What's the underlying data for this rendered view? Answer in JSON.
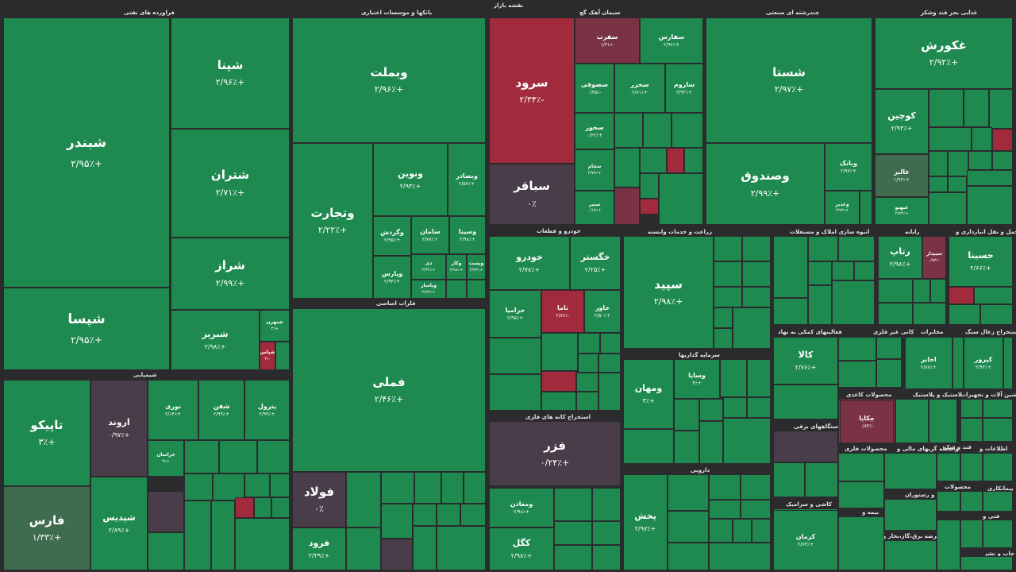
{
  "title": "نقشه بازار",
  "colors": {
    "up": "#1f8a50",
    "down": "#a12a3c",
    "neutral": "#4a3d4a",
    "background": "#2b2b2e"
  },
  "sectors": {
    "petro": "فراورده های نفتی",
    "banks": "بانکها و موسسات اعتباری",
    "cement": "سیمان آهک گچ",
    "multi": "چندرشته ای صنعتی",
    "food": "غذایی بجز قند وشکر",
    "chem": "شیمیایی",
    "metals": "فلزات اساسی",
    "auto": "خودرو و قطعات",
    "agri": "زراعت و خدمات وابسته",
    "realestate": "انبوه سازی املاک و مستغلات",
    "computer": "رایانه",
    "transport": "حمل و نقل انبارداری و",
    "ore": "استخراج کانه های فلزی",
    "investment": "سرمایه گذاریها",
    "financial": "فعالیتهای کمکی به نهاد",
    "nonmetal": "کانی غیر فلزی",
    "telecom": "مخابرات",
    "coal": "استخراج زغال سنگ",
    "pharma": "دارویی",
    "metalprod": "محصولات کاغذی",
    "rubber": "لاستیک و پلاستیک",
    "machinery": "ماشین آلات و تجهیزات",
    "devices": "دستگاههای برقی",
    "metalproducts": "محصولات فلزی",
    "sugar": "قند و شکر",
    "info": "اطلاعات و",
    "brokers": "واسطه گریهای مالی و",
    "insurance": "بیمه و",
    "hotel": "هتل و رستوران",
    "contract": "پیمانکاری",
    "ceramic": "کاشی و سرامیک",
    "utility": "عرضه برق،گاز،بخار و آب",
    "tech": "فنی و",
    "product": "محصولات",
    "misc": "چاپ و نشر"
  },
  "tiles": [
    {
      "name": "شبندر",
      "change": "+۲/۹۵٪"
    },
    {
      "name": "شپنا",
      "change": "+۲/۹۶٪"
    },
    {
      "name": "شتران",
      "change": "+۲/۷۱٪"
    },
    {
      "name": "شراز",
      "change": "+۲/۹۹٪"
    },
    {
      "name": "شپسا",
      "change": "+۲/۹۵٪"
    },
    {
      "name": "شبریز",
      "change": "+۲/۹۸٪"
    },
    {
      "name": "شبهرن",
      "change": "+۳٪"
    },
    {
      "name": "شپاس",
      "change": "-۳٪"
    },
    {
      "name": "وبملت",
      "change": "+۲/۹۶٪"
    },
    {
      "name": "وتجارت",
      "change": "+۲/۲۲٪"
    },
    {
      "name": "ونوین",
      "change": "+۲/۹۳٪"
    },
    {
      "name": "وبصادر",
      "change": "+۲/۵۷٪"
    },
    {
      "name": "وگردش",
      "change": "+۲/۹۵٪"
    },
    {
      "name": "سامان",
      "change": "+۲/۷۸٪"
    },
    {
      "name": "وسینا",
      "change": "+۲/۹۸٪"
    },
    {
      "name": "وپارس",
      "change": "+۲/۹۴٪"
    },
    {
      "name": "دی",
      "change": "+۲/۳۲٪"
    },
    {
      "name": "وکار",
      "change": "+۲/۹۸٪"
    },
    {
      "name": "وپست",
      "change": "+۲/۹۳٪"
    },
    {
      "name": "وپاسار",
      "change": "+۲/۹۴٪"
    },
    {
      "name": "سرود",
      "change": "-۲/۳۴٪"
    },
    {
      "name": "سفرب",
      "change": "-۱/۳۱٪"
    },
    {
      "name": "سفارس",
      "change": "+۲/۹۶٪"
    },
    {
      "name": "سباقر",
      "change": "۰٪"
    },
    {
      "name": "سصوفی",
      "change": "-۰/۳۵٪"
    },
    {
      "name": "سخزر",
      "change": "+۲/۸۱٪"
    },
    {
      "name": "ساروم",
      "change": "+۲/۹۲٪"
    },
    {
      "name": "سخوز",
      "change": "+۰/۶۲٪"
    },
    {
      "name": "سجام",
      "change": "+۲/۷۷٪"
    },
    {
      "name": "ستیر",
      "change": "+۰/۱۷٪"
    },
    {
      "name": "شستا",
      "change": "+۲/۹۷٪"
    },
    {
      "name": "وصندوق",
      "change": "+۲/۹۹٪"
    },
    {
      "name": "وبانک",
      "change": "+۲/۹۷٪"
    },
    {
      "name": "وغدیر",
      "change": "+۲/۹۳٪"
    },
    {
      "name": "غکورش",
      "change": "+۲/۹۲٪"
    },
    {
      "name": "کوچین",
      "change": "+۲/۹۳٪"
    },
    {
      "name": "غالبر",
      "change": "+۱/۹۳٪"
    },
    {
      "name": "غبهنو",
      "change": "+۲/۹۴٪"
    },
    {
      "name": "تاپیکو",
      "change": "+۳٪"
    },
    {
      "name": "فارس",
      "change": "+۱/۳۳٪"
    },
    {
      "name": "اروند",
      "change": "+۰/۹۷٪"
    },
    {
      "name": "شپدیس",
      "change": "+۲/۸۹٪"
    },
    {
      "name": "نوری",
      "change": "+۲/۱۴٪"
    },
    {
      "name": "شفن",
      "change": "+۲/۹۹٪"
    },
    {
      "name": "پترول",
      "change": "+۲/۹۹٪"
    },
    {
      "name": "خراسان",
      "change": "+۳٪"
    },
    {
      "name": "فملی",
      "change": "+۲/۴۶٪"
    },
    {
      "name": "فولاد",
      "change": "۰٪"
    },
    {
      "name": "فرود",
      "change": "+۲/۳۹٪"
    },
    {
      "name": "خودرو",
      "change": "+۲/۷۸٪"
    },
    {
      "name": "خگستر",
      "change": "+۲/۲۵٪"
    },
    {
      "name": "خزامیا",
      "change": "+۲/۹۵٪"
    },
    {
      "name": "ناما",
      "change": "-۲/۷۶٪"
    },
    {
      "name": "خاور",
      "change": "+۲/۵۰٪"
    },
    {
      "name": "فزر",
      "change": "+۰/۲۴٪"
    },
    {
      "name": "سپید",
      "change": "+۲/۹۸٪"
    },
    {
      "name": "ومهان",
      "change": "+۳٪"
    },
    {
      "name": "وساپا",
      "change": "+۳٪"
    },
    {
      "name": "پخش",
      "change": "+۲/۹۷٪"
    },
    {
      "name": "کالا",
      "change": "+۲/۷۶٪"
    },
    {
      "name": "حسینا",
      "change": "+۲/۶۶٪"
    },
    {
      "name": "رتاپ",
      "change": "+۲/۹۸٪"
    },
    {
      "name": "سپیدار",
      "change": "-۰/۸۳٪"
    },
    {
      "name": "اخابر",
      "change": "+۲/۸۸٪"
    },
    {
      "name": "کپرور",
      "change": "+۲/۹۳٪"
    },
    {
      "name": "چکاپا",
      "change": "-۰/۸۴٪"
    },
    {
      "name": "ومعادن",
      "change": "+۲/۹۸٪"
    },
    {
      "name": "کگل",
      "change": "+۲/۹۸٪"
    },
    {
      "name": "کرمان",
      "change": "+۲/۷۳٪"
    }
  ]
}
